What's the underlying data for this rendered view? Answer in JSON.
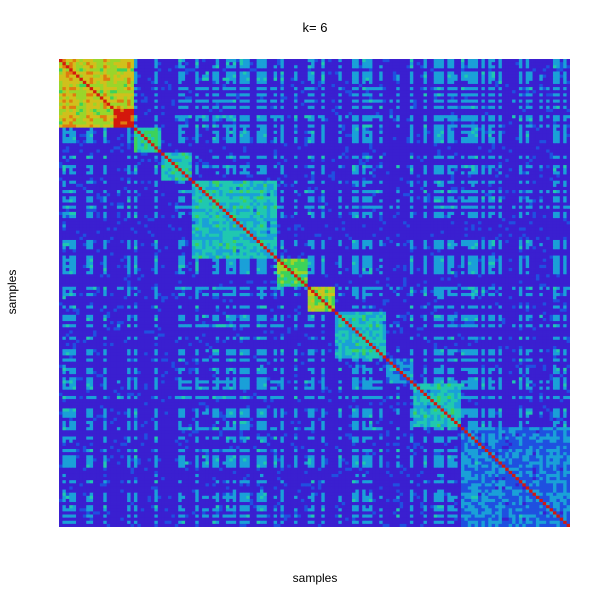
{
  "chart_data": {
    "type": "heatmap",
    "title": "k= 6",
    "xlabel": "samples",
    "ylabel": "samples",
    "matrix_size": 150,
    "diagonal_value": 1.0,
    "clusters": [
      {
        "start": 0,
        "end": 22,
        "within": 0.85
      },
      {
        "start": 22,
        "end": 30,
        "within": 0.6
      },
      {
        "start": 30,
        "end": 39,
        "within": 0.55
      },
      {
        "start": 39,
        "end": 64,
        "within": 0.5
      },
      {
        "start": 64,
        "end": 73,
        "within": 0.7
      },
      {
        "start": 73,
        "end": 81,
        "within": 0.8
      },
      {
        "start": 81,
        "end": 96,
        "within": 0.5
      },
      {
        "start": 96,
        "end": 104,
        "within": 0.4
      },
      {
        "start": 104,
        "end": 118,
        "within": 0.5
      },
      {
        "start": 118,
        "end": 150,
        "within": 0.35
      }
    ],
    "background_level": 0.1,
    "colors": [
      "#6a00b0",
      "#3a1fd0",
      "#1f50e0",
      "#1aa0d8",
      "#20c8b0",
      "#3cd25a",
      "#9ad52a",
      "#d0c01c",
      "#e07a10",
      "#d4180c"
    ]
  }
}
